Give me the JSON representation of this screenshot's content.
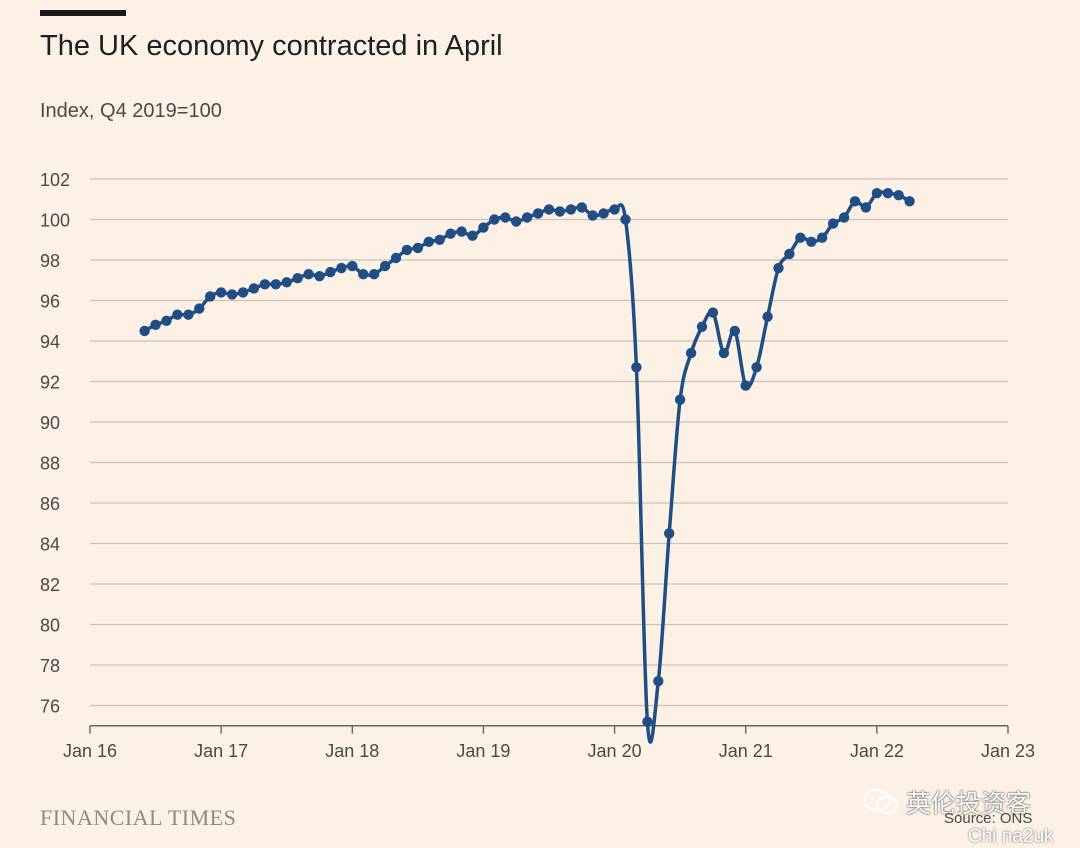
{
  "header": {
    "title": "The UK economy contracted in April",
    "subtitle": "Index, Q4 2019=100"
  },
  "footer": {
    "publisher": "FINANCIAL TIMES",
    "source": "Source: ONS"
  },
  "watermark": {
    "brand": "英伦投资客",
    "account": "Chi na2uk",
    "icon": "wechat-icon"
  },
  "colors": {
    "background": "#fdf0e4",
    "line": "#1f4e86",
    "grid": "#ccc1b7"
  },
  "chart_data": {
    "type": "line",
    "title": "The UK economy contracted in April",
    "subtitle": "Index, Q4 2019=100",
    "xlabel": "",
    "ylabel": "",
    "ylim": [
      75,
      102
    ],
    "yticks": [
      76,
      78,
      80,
      82,
      84,
      86,
      88,
      90,
      92,
      94,
      96,
      98,
      100,
      102
    ],
    "xticks": [
      "Jan 16",
      "Jan 17",
      "Jan 18",
      "Jan 19",
      "Jan 20",
      "Jan 21",
      "Jan 22",
      "Jan 23"
    ],
    "grid": true,
    "series": [
      {
        "x": [
          "2016-06",
          "2016-07",
          "2016-08",
          "2016-09",
          "2016-10",
          "2016-11",
          "2016-12",
          "2017-01",
          "2017-02",
          "2017-03",
          "2017-04",
          "2017-05",
          "2017-06",
          "2017-07",
          "2017-08",
          "2017-09",
          "2017-10",
          "2017-11",
          "2017-12",
          "2018-01",
          "2018-02",
          "2018-03",
          "2018-04",
          "2018-05",
          "2018-06",
          "2018-07",
          "2018-08",
          "2018-09",
          "2018-10",
          "2018-11",
          "2018-12",
          "2019-01",
          "2019-02",
          "2019-03",
          "2019-04",
          "2019-05",
          "2019-06",
          "2019-07",
          "2019-08",
          "2019-09",
          "2019-10",
          "2019-11",
          "2019-12",
          "2020-01",
          "2020-02",
          "2020-03",
          "2020-04",
          "2020-05",
          "2020-06",
          "2020-07",
          "2020-08",
          "2020-09",
          "2020-10",
          "2020-11",
          "2020-12",
          "2021-01",
          "2021-02",
          "2021-03",
          "2021-04",
          "2021-05",
          "2021-06",
          "2021-07",
          "2021-08",
          "2021-09",
          "2021-10",
          "2021-11",
          "2021-12",
          "2022-01",
          "2022-02",
          "2022-03",
          "2022-04"
        ],
        "values": [
          94.5,
          94.8,
          95.0,
          95.3,
          95.3,
          95.6,
          96.2,
          96.4,
          96.3,
          96.4,
          96.6,
          96.8,
          96.8,
          96.9,
          97.1,
          97.3,
          97.2,
          97.4,
          97.6,
          97.7,
          97.3,
          97.3,
          97.7,
          98.1,
          98.5,
          98.6,
          98.9,
          99.0,
          99.3,
          99.4,
          99.2,
          99.6,
          100.0,
          100.1,
          99.9,
          100.1,
          100.3,
          100.5,
          100.4,
          100.5,
          100.6,
          100.2,
          100.3,
          100.5,
          100.0,
          92.7,
          75.2,
          77.2,
          84.5,
          91.1,
          93.4,
          94.7,
          95.4,
          93.4,
          94.5,
          91.8,
          92.7,
          95.2,
          97.6,
          98.3,
          99.1,
          98.9,
          99.1,
          99.8,
          100.1,
          100.9,
          100.6,
          101.3,
          101.3,
          101.2,
          100.9
        ]
      }
    ]
  }
}
